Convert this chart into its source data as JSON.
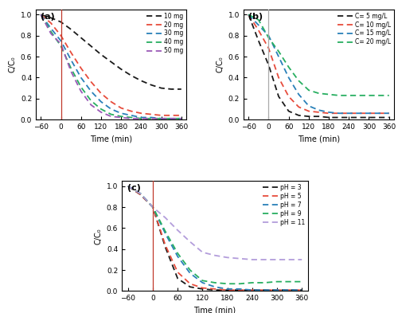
{
  "fig_width": 5.0,
  "fig_height": 3.93,
  "dpi": 100,
  "panel_a": {
    "label": "(a)",
    "xlabel": "Time (min)",
    "ylabel": "C/C₀",
    "xlim": [
      -75,
      375
    ],
    "ylim": [
      0.0,
      1.05
    ],
    "xticks": [
      -60,
      0,
      60,
      120,
      180,
      240,
      300,
      360
    ],
    "yticks": [
      0.0,
      0.2,
      0.4,
      0.6,
      0.8,
      1.0
    ],
    "vline_x": 0,
    "vline_color": "#c0392b",
    "series": [
      {
        "label": "10 mg",
        "color": "#1a1a1a",
        "t": [
          -60,
          -30,
          0,
          30,
          60,
          90,
          120,
          150,
          180,
          210,
          240,
          270,
          300,
          330,
          360
        ],
        "y": [
          1.0,
          0.97,
          0.93,
          0.86,
          0.78,
          0.7,
          0.62,
          0.55,
          0.48,
          0.42,
          0.37,
          0.33,
          0.3,
          0.29,
          0.29
        ]
      },
      {
        "label": "20 mg",
        "color": "#e74c3c",
        "t": [
          -60,
          -30,
          0,
          30,
          60,
          90,
          120,
          150,
          180,
          210,
          240,
          270,
          300,
          330,
          360
        ],
        "y": [
          1.0,
          0.92,
          0.8,
          0.64,
          0.49,
          0.36,
          0.25,
          0.17,
          0.11,
          0.08,
          0.06,
          0.05,
          0.04,
          0.04,
          0.04
        ]
      },
      {
        "label": "30 mg",
        "color": "#2980b9",
        "t": [
          -60,
          -30,
          0,
          30,
          60,
          90,
          120,
          150,
          180,
          210,
          240,
          270,
          300,
          330,
          360
        ],
        "y": [
          1.0,
          0.87,
          0.75,
          0.57,
          0.4,
          0.27,
          0.17,
          0.1,
          0.06,
          0.04,
          0.02,
          0.02,
          0.01,
          0.01,
          0.01
        ]
      },
      {
        "label": "40 mg",
        "color": "#27ae60",
        "t": [
          -60,
          -30,
          0,
          30,
          60,
          90,
          120,
          150,
          180,
          210,
          240,
          270,
          300,
          330,
          360
        ],
        "y": [
          1.0,
          0.84,
          0.7,
          0.49,
          0.31,
          0.18,
          0.1,
          0.05,
          0.03,
          0.02,
          0.01,
          0.01,
          0.01,
          0.01,
          0.01
        ]
      },
      {
        "label": "50 mg",
        "color": "#9b59b6",
        "t": [
          -60,
          -30,
          0,
          30,
          60,
          90,
          120,
          150,
          180,
          210,
          240,
          270,
          300,
          330,
          360
        ],
        "y": [
          1.0,
          0.82,
          0.72,
          0.46,
          0.27,
          0.14,
          0.07,
          0.03,
          0.02,
          0.01,
          0.01,
          0.01,
          0.01,
          0.01,
          0.01
        ]
      }
    ]
  },
  "panel_b": {
    "label": "(b)",
    "xlabel": "Time (min)",
    "ylabel": "C/C₀",
    "xlim": [
      -75,
      375
    ],
    "ylim": [
      0.0,
      1.05
    ],
    "xticks": [
      -60,
      0,
      60,
      120,
      180,
      240,
      300,
      360
    ],
    "yticks": [
      0.0,
      0.2,
      0.4,
      0.6,
      0.8,
      1.0
    ],
    "vline_x": 0,
    "vline_color": "#aaaaaa",
    "series": [
      {
        "label": "C= 5 mg/L",
        "color": "#1a1a1a",
        "t": [
          -60,
          -30,
          0,
          30,
          60,
          90,
          120,
          150,
          180,
          210,
          240,
          270,
          300,
          330,
          360
        ],
        "y": [
          1.0,
          0.75,
          0.52,
          0.22,
          0.08,
          0.04,
          0.03,
          0.03,
          0.02,
          0.02,
          0.02,
          0.02,
          0.02,
          0.02,
          0.02
        ]
      },
      {
        "label": "C= 10 mg/L",
        "color": "#e74c3c",
        "t": [
          -60,
          -30,
          0,
          30,
          60,
          90,
          120,
          150,
          180,
          210,
          240,
          270,
          300,
          330,
          360
        ],
        "y": [
          1.0,
          0.85,
          0.68,
          0.4,
          0.22,
          0.12,
          0.08,
          0.07,
          0.06,
          0.06,
          0.06,
          0.06,
          0.06,
          0.06,
          0.06
        ]
      },
      {
        "label": "C= 15 mg/L",
        "color": "#2980b9",
        "t": [
          -60,
          -30,
          0,
          30,
          60,
          90,
          120,
          150,
          180,
          210,
          240,
          270,
          300,
          330,
          360
        ],
        "y": [
          1.0,
          0.9,
          0.8,
          0.6,
          0.4,
          0.24,
          0.13,
          0.09,
          0.07,
          0.06,
          0.06,
          0.06,
          0.06,
          0.06,
          0.06
        ]
      },
      {
        "label": "C= 20 mg/L",
        "color": "#27ae60",
        "t": [
          -60,
          -30,
          0,
          30,
          60,
          90,
          120,
          150,
          180,
          210,
          240,
          270,
          300,
          330,
          360
        ],
        "y": [
          1.0,
          0.95,
          0.78,
          0.65,
          0.5,
          0.37,
          0.28,
          0.25,
          0.24,
          0.23,
          0.23,
          0.23,
          0.23,
          0.23,
          0.23
        ]
      }
    ]
  },
  "panel_c": {
    "label": "(c)",
    "xlabel": "Time (min)",
    "ylabel": "C/C₀",
    "xlim": [
      -75,
      375
    ],
    "ylim": [
      0.0,
      1.05
    ],
    "xticks": [
      -60,
      0,
      60,
      120,
      180,
      240,
      300,
      360
    ],
    "yticks": [
      0.0,
      0.2,
      0.4,
      0.6,
      0.8,
      1.0
    ],
    "vline_x": 0,
    "vline_color": "#c0392b",
    "series": [
      {
        "label": "pH = 3",
        "color": "#1a1a1a",
        "t": [
          -60,
          -30,
          0,
          30,
          60,
          90,
          120,
          150,
          180,
          210,
          240,
          270,
          300,
          330,
          360
        ],
        "y": [
          1.0,
          0.92,
          0.8,
          0.42,
          0.12,
          0.04,
          0.02,
          0.01,
          0.01,
          0.01,
          0.01,
          0.01,
          0.01,
          0.01,
          0.01
        ]
      },
      {
        "label": "pH = 5",
        "color": "#e74c3c",
        "t": [
          -60,
          -30,
          0,
          30,
          60,
          90,
          120,
          150,
          180,
          210,
          240,
          270,
          300,
          330,
          360
        ],
        "y": [
          1.0,
          0.92,
          0.8,
          0.44,
          0.18,
          0.07,
          0.03,
          0.02,
          0.01,
          0.01,
          0.01,
          0.01,
          0.01,
          0.01,
          0.01
        ]
      },
      {
        "label": "pH = 7",
        "color": "#2980b9",
        "t": [
          -60,
          -30,
          0,
          30,
          60,
          90,
          120,
          150,
          180,
          210,
          240,
          270,
          300,
          330,
          360
        ],
        "y": [
          1.0,
          0.93,
          0.8,
          0.55,
          0.33,
          0.17,
          0.08,
          0.04,
          0.02,
          0.02,
          0.01,
          0.01,
          0.01,
          0.01,
          0.01
        ]
      },
      {
        "label": "pH = 9",
        "color": "#27ae60",
        "t": [
          -60,
          -30,
          0,
          30,
          60,
          90,
          120,
          150,
          180,
          210,
          240,
          270,
          300,
          330,
          360
        ],
        "y": [
          1.0,
          0.93,
          0.8,
          0.57,
          0.36,
          0.2,
          0.1,
          0.08,
          0.07,
          0.07,
          0.08,
          0.08,
          0.09,
          0.09,
          0.09
        ]
      },
      {
        "label": "pH = 11",
        "color": "#b39ddb",
        "t": [
          -60,
          -30,
          0,
          30,
          60,
          90,
          120,
          150,
          180,
          210,
          240,
          270,
          300,
          330,
          360
        ],
        "y": [
          1.0,
          0.93,
          0.8,
          0.7,
          0.58,
          0.47,
          0.37,
          0.34,
          0.32,
          0.31,
          0.3,
          0.3,
          0.3,
          0.3,
          0.3
        ]
      }
    ]
  }
}
